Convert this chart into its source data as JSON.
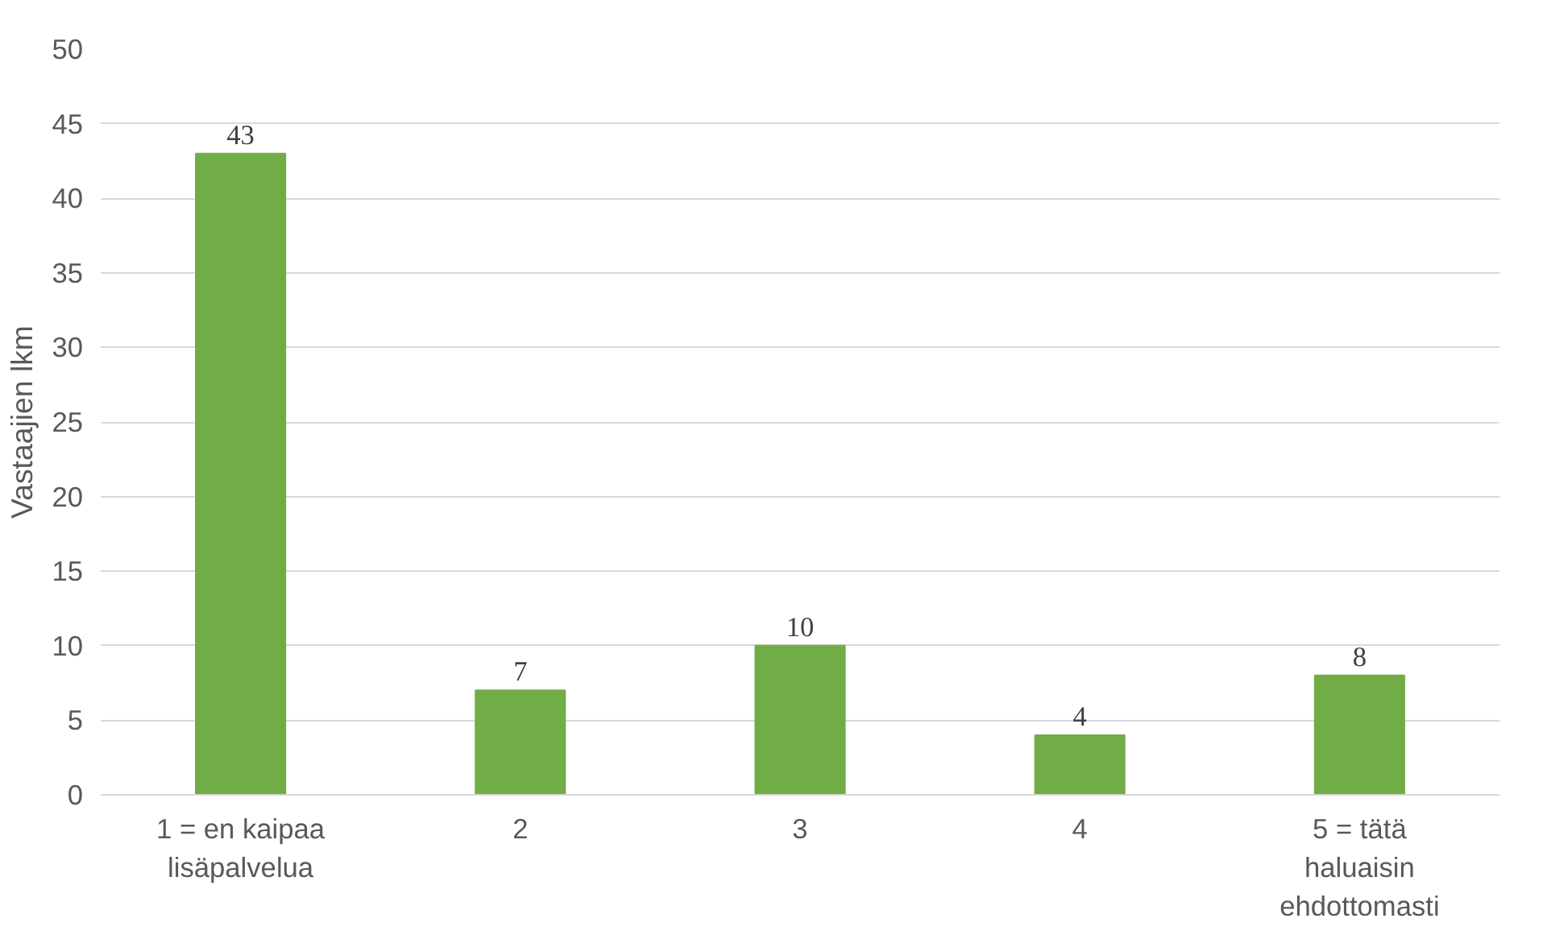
{
  "chart_data": {
    "type": "bar",
    "ylabel": "Vastaajien lkm",
    "categories": [
      "1 = en kaipaa\nlisäpalvelua",
      "2",
      "3",
      "4",
      "5 = tätä\nhaluaisin\nehdottomasti"
    ],
    "values": [
      43,
      7,
      10,
      4,
      8
    ],
    "color": "#70ad47",
    "ylim": [
      0,
      50
    ],
    "yticks": [
      0,
      5,
      10,
      15,
      20,
      25,
      30,
      35,
      40,
      45,
      50
    ],
    "grid": "y",
    "data_labels": true
  }
}
